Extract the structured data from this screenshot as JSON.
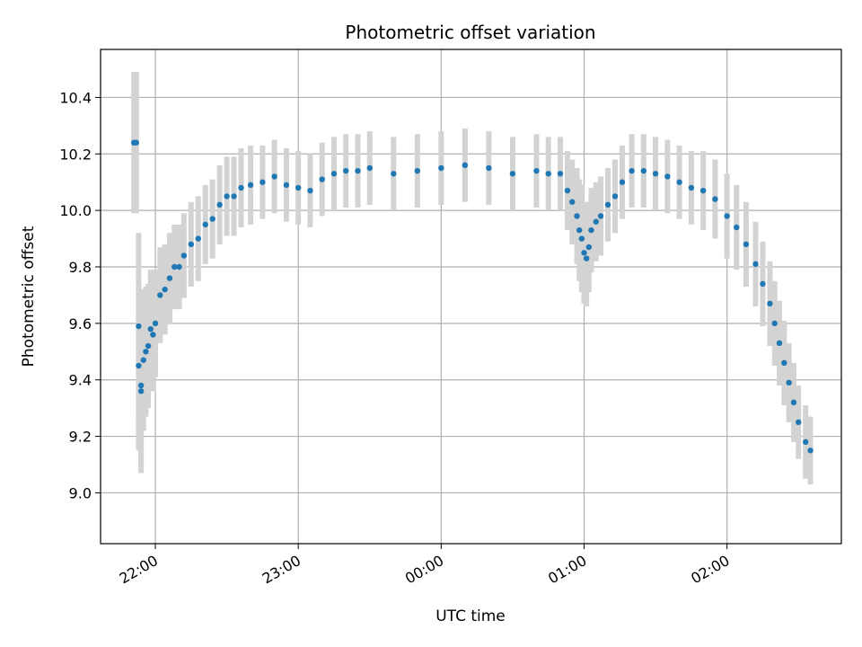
{
  "chart_data": {
    "type": "scatter",
    "title": "Photometric offset variation",
    "xlabel": "UTC time",
    "ylabel": "Photometric offset",
    "xlim": [
      "21:37",
      "02:48"
    ],
    "ylim": [
      8.82,
      10.57
    ],
    "x_ticks": [
      "22:00",
      "23:00",
      "00:00",
      "01:00",
      "02:00"
    ],
    "y_ticks": [
      9.0,
      9.2,
      9.4,
      9.6,
      9.8,
      10.0,
      10.2,
      10.4
    ],
    "grid": true,
    "point_color": "#1f77b4",
    "errorbar_color": "#d3d3d3",
    "x": [
      "21:51",
      "21:52",
      "21:53",
      "21:53",
      "21:54",
      "21:54",
      "21:55",
      "21:56",
      "21:57",
      "21:58",
      "21:59",
      "22:00",
      "22:02",
      "22:04",
      "22:06",
      "22:08",
      "22:10",
      "22:12",
      "22:15",
      "22:18",
      "22:21",
      "22:24",
      "22:27",
      "22:30",
      "22:33",
      "22:36",
      "22:40",
      "22:45",
      "22:50",
      "22:55",
      "23:00",
      "23:05",
      "23:10",
      "23:15",
      "23:20",
      "23:25",
      "23:30",
      "23:40",
      "23:50",
      "00:00",
      "00:10",
      "00:20",
      "00:30",
      "00:40",
      "00:45",
      "00:50",
      "00:53",
      "00:55",
      "00:57",
      "00:58",
      "00:59",
      "01:00",
      "01:01",
      "01:02",
      "01:03",
      "01:05",
      "01:07",
      "01:10",
      "01:13",
      "01:16",
      "01:20",
      "01:25",
      "01:30",
      "01:35",
      "01:40",
      "01:45",
      "01:50",
      "01:55",
      "02:00",
      "02:04",
      "02:08",
      "02:12",
      "02:15",
      "02:18",
      "02:20",
      "02:22",
      "02:24",
      "02:26",
      "02:28",
      "02:30",
      "02:33",
      "02:35"
    ],
    "values": [
      10.24,
      10.24,
      9.59,
      9.45,
      9.38,
      9.36,
      9.47,
      9.5,
      9.52,
      9.58,
      9.56,
      9.6,
      9.7,
      9.72,
      9.76,
      9.8,
      9.8,
      9.84,
      9.88,
      9.9,
      9.95,
      9.97,
      10.02,
      10.05,
      10.05,
      10.08,
      10.09,
      10.1,
      10.12,
      10.09,
      10.08,
      10.07,
      10.11,
      10.13,
      10.14,
      10.14,
      10.15,
      10.13,
      10.14,
      10.15,
      10.16,
      10.15,
      10.13,
      10.14,
      10.13,
      10.13,
      10.07,
      10.03,
      9.98,
      9.93,
      9.9,
      9.85,
      9.83,
      9.87,
      9.93,
      9.96,
      9.98,
      10.02,
      10.05,
      10.1,
      10.14,
      10.14,
      10.13,
      10.12,
      10.1,
      10.08,
      10.07,
      10.04,
      9.98,
      9.94,
      9.88,
      9.81,
      9.74,
      9.67,
      9.6,
      9.53,
      9.46,
      9.39,
      9.32,
      9.25,
      9.18,
      9.15
    ],
    "errors": [
      0.25,
      0.25,
      0.33,
      0.3,
      0.29,
      0.29,
      0.25,
      0.23,
      0.22,
      0.21,
      0.2,
      0.19,
      0.17,
      0.16,
      0.16,
      0.15,
      0.15,
      0.15,
      0.15,
      0.15,
      0.14,
      0.14,
      0.14,
      0.14,
      0.14,
      0.14,
      0.14,
      0.13,
      0.13,
      0.13,
      0.13,
      0.13,
      0.13,
      0.13,
      0.13,
      0.13,
      0.13,
      0.13,
      0.13,
      0.13,
      0.13,
      0.13,
      0.13,
      0.13,
      0.13,
      0.13,
      0.14,
      0.15,
      0.17,
      0.18,
      0.19,
      0.18,
      0.17,
      0.16,
      0.15,
      0.14,
      0.14,
      0.13,
      0.13,
      0.13,
      0.13,
      0.13,
      0.13,
      0.13,
      0.13,
      0.13,
      0.14,
      0.14,
      0.15,
      0.15,
      0.15,
      0.15,
      0.15,
      0.15,
      0.15,
      0.15,
      0.15,
      0.14,
      0.14,
      0.13,
      0.13,
      0.12
    ]
  }
}
